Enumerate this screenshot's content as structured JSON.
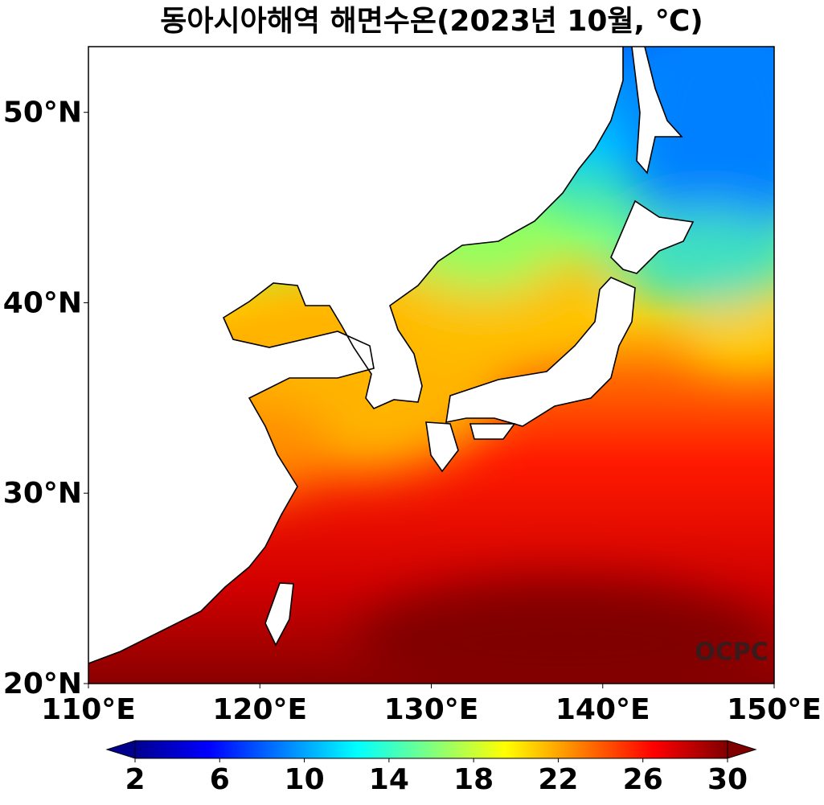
{
  "title": "동아시아해역 해면수온(2023년 10월, ℃)",
  "map": {
    "xlim": [
      110,
      150
    ],
    "ylim": [
      20,
      53.45
    ],
    "xticks": [
      {
        "value": 110,
        "label": "110°E"
      },
      {
        "value": 120,
        "label": "120°E"
      },
      {
        "value": 130,
        "label": "130°E"
      },
      {
        "value": 140,
        "label": "140°E"
      },
      {
        "value": 150,
        "label": "150°E"
      }
    ],
    "yticks": [
      {
        "value": 20,
        "label": "20°N"
      },
      {
        "value": 30,
        "label": "30°N"
      },
      {
        "value": 40,
        "label": "40°N"
      },
      {
        "value": 50,
        "label": "50°N"
      }
    ]
  },
  "colorbar": {
    "colormap": "jet",
    "clim": [
      2,
      30
    ],
    "ticks": [
      2,
      6,
      10,
      14,
      18,
      22,
      26,
      30
    ],
    "extend": "both"
  },
  "watermark": "OCPC"
}
